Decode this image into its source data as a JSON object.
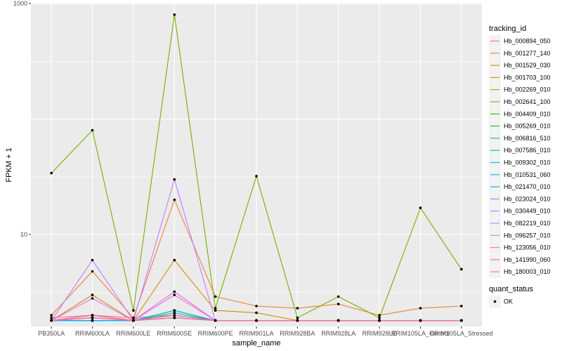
{
  "chart_data": {
    "type": "line",
    "xlabel": "sample_name",
    "ylabel": "FPKM + 1",
    "yscale": "log10",
    "ylim": [
      1.6,
      1000
    ],
    "y_ticks": [
      10,
      1000
    ],
    "y_tick_labels": [
      "10",
      "1000"
    ],
    "categories": [
      "PB350LA",
      "RRIM600LA",
      "RRIM600LE",
      "RRIM600SE",
      "RRIM600PE",
      "RRIM901LA",
      "RRIM928BA",
      "RRIM928LA",
      "RRIM928LE",
      "RRIM105LA_Control",
      "RRIM105LA_Stressed"
    ],
    "legend_title": "tracking_id",
    "series": [
      {
        "name": "Hb_000894_050",
        "color": "#F8766D",
        "values": [
          1.9,
          2.0,
          1.9,
          2.0,
          1.8,
          1.8,
          1.8,
          1.8,
          1.8,
          1.8,
          1.8
        ]
      },
      {
        "name": "Hb_001277_140",
        "color": "#EA8331",
        "values": [
          2.0,
          4.8,
          1.9,
          20.0,
          2.9,
          2.4,
          2.3,
          2.5,
          2.0,
          2.3,
          2.4
        ]
      },
      {
        "name": "Hb_001529_030",
        "color": "#D89000",
        "values": [
          1.8,
          3.0,
          1.8,
          6.0,
          2.2,
          2.1,
          1.8,
          1.8,
          1.8,
          1.8,
          1.8
        ]
      },
      {
        "name": "Hb_001703_100",
        "color": "#C09B00",
        "values": [
          1.8,
          2.0,
          1.8,
          2.0,
          1.8,
          1.8,
          1.8,
          1.8,
          1.8,
          1.8,
          1.8
        ]
      },
      {
        "name": "Hb_002269_010",
        "color": "#A3A500",
        "values": [
          1.8,
          1.9,
          1.8,
          1.9,
          1.8,
          1.8,
          1.8,
          1.8,
          1.8,
          1.8,
          1.8
        ]
      },
      {
        "name": "Hb_002641_100",
        "color": "#7CAE00",
        "values": [
          34,
          80,
          2.2,
          800,
          2.3,
          32,
          1.9,
          2.9,
          1.9,
          17,
          5.0
        ]
      },
      {
        "name": "Hb_004409_010",
        "color": "#39B600",
        "values": [
          1.8,
          1.9,
          1.8,
          1.9,
          1.8,
          1.8,
          1.8,
          1.8,
          1.8,
          1.8,
          1.8
        ]
      },
      {
        "name": "Hb_005269_010",
        "color": "#00BB4E",
        "values": [
          1.8,
          1.8,
          1.8,
          1.9,
          1.8,
          1.8,
          1.8,
          1.8,
          1.8,
          1.8,
          1.8
        ]
      },
      {
        "name": "Hb_006816_510",
        "color": "#00BF7D",
        "values": [
          1.8,
          1.8,
          1.8,
          2.1,
          1.8,
          1.8,
          1.8,
          1.8,
          1.8,
          1.8,
          1.8
        ]
      },
      {
        "name": "Hb_007586_010",
        "color": "#00C1A3",
        "values": [
          1.8,
          1.9,
          1.8,
          2.0,
          1.8,
          1.8,
          1.8,
          1.8,
          1.8,
          1.8,
          1.8
        ]
      },
      {
        "name": "Hb_009302_010",
        "color": "#00BFC4",
        "values": [
          1.8,
          1.8,
          1.8,
          2.2,
          1.8,
          1.8,
          1.8,
          1.8,
          1.8,
          1.8,
          1.8
        ]
      },
      {
        "name": "Hb_010531_060",
        "color": "#00B8E7",
        "values": [
          1.8,
          1.8,
          1.8,
          2.2,
          1.8,
          1.8,
          1.8,
          1.8,
          1.8,
          1.8,
          1.8
        ]
      },
      {
        "name": "Hb_021470_010",
        "color": "#00A9FF",
        "values": [
          1.8,
          1.8,
          1.8,
          1.9,
          1.8,
          1.8,
          1.8,
          1.8,
          1.8,
          1.8,
          1.8
        ]
      },
      {
        "name": "Hb_023024_010",
        "color": "#619CFF",
        "values": [
          1.8,
          1.9,
          1.8,
          1.9,
          1.8,
          1.8,
          1.8,
          1.8,
          1.8,
          1.8,
          1.8
        ]
      },
      {
        "name": "Hb_030449_010",
        "color": "#9590FF",
        "values": [
          1.8,
          1.9,
          1.8,
          1.9,
          1.8,
          1.8,
          1.8,
          1.8,
          1.8,
          1.8,
          1.8
        ]
      },
      {
        "name": "Hb_082219_010",
        "color": "#C77CFF",
        "values": [
          1.8,
          6.0,
          1.8,
          30.0,
          1.8,
          1.8,
          1.8,
          1.8,
          1.8,
          1.8,
          1.8
        ]
      },
      {
        "name": "Hb_096257_010",
        "color": "#E76BF3",
        "values": [
          1.8,
          2.8,
          1.8,
          3.0,
          1.8,
          1.8,
          1.8,
          1.8,
          1.8,
          1.8,
          1.8
        ]
      },
      {
        "name": "Hb_123056_010",
        "color": "#FA62DB",
        "values": [
          1.8,
          2.0,
          1.8,
          3.2,
          1.8,
          1.8,
          1.8,
          1.8,
          1.8,
          1.8,
          1.8
        ]
      },
      {
        "name": "Hb_141990_060",
        "color": "#FF62BC",
        "values": [
          1.8,
          2.0,
          1.8,
          2.0,
          1.8,
          1.8,
          1.8,
          1.8,
          1.8,
          1.8,
          1.8
        ]
      },
      {
        "name": "Hb_180003_010",
        "color": "#FF6C91",
        "values": [
          1.8,
          1.9,
          1.8,
          1.9,
          1.8,
          1.8,
          1.8,
          1.8,
          1.8,
          1.8,
          1.8
        ]
      }
    ],
    "shape_legend": {
      "title": "quant_status",
      "label": "OK"
    },
    "grid": true,
    "legend_position": "right",
    "background_color": "#EBEBEB",
    "gridline_color": "#FFFFFF"
  }
}
